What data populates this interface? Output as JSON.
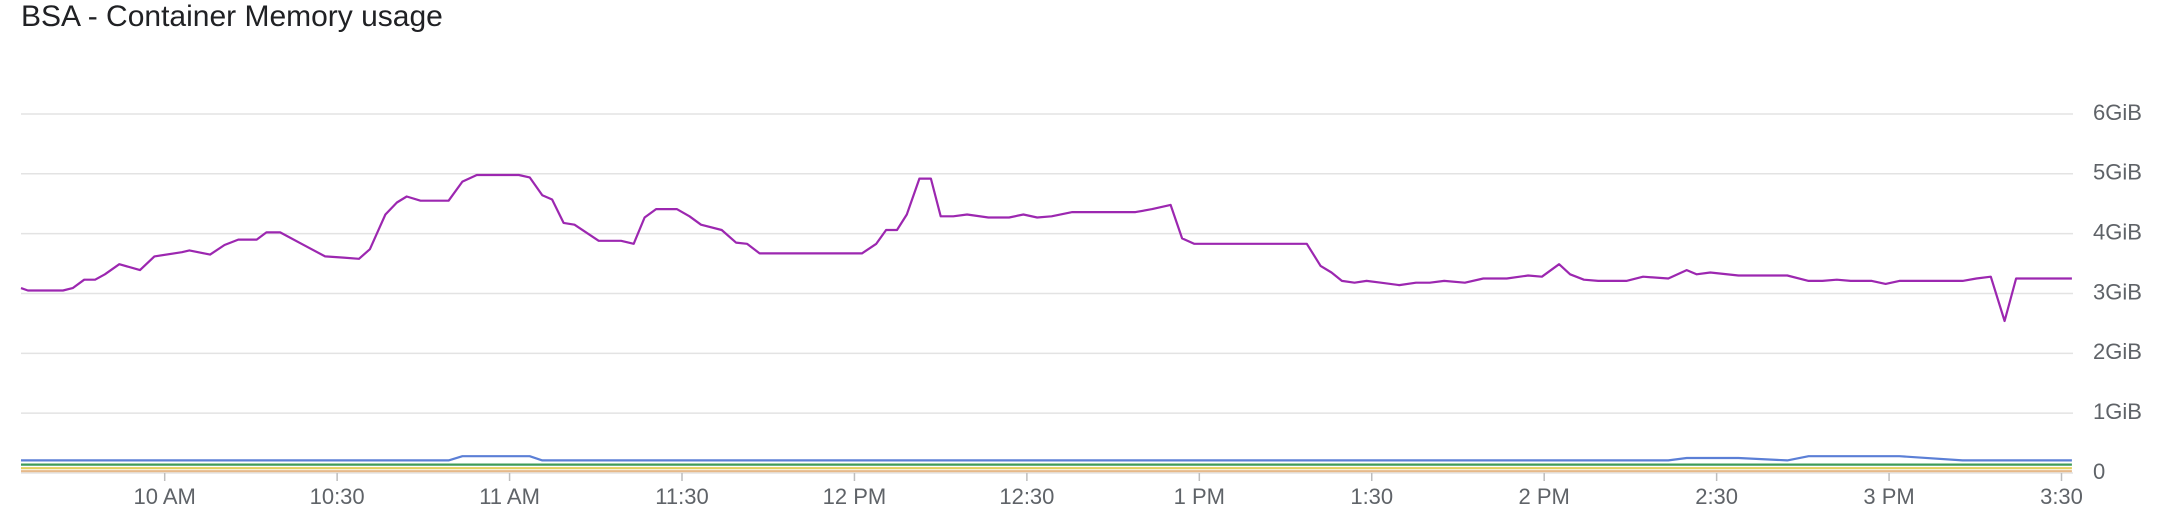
{
  "chart_data": {
    "type": "line",
    "title": "BSA - Container Memory usage",
    "x": [
      575.0,
      576.2,
      582.3,
      584.0,
      586.0,
      587.9,
      589.6,
      592.1,
      595.7,
      598.2,
      603.0,
      604.3,
      607.9,
      610.4,
      612.8,
      616.0,
      617.7,
      620.1,
      623.8,
      627.9,
      631.1,
      633.8,
      635.7,
      638.4,
      640.4,
      642.1,
      644.5,
      649.4,
      651.8,
      654.3,
      661.6,
      663.5,
      665.7,
      667.4,
      669.4,
      671.3,
      675.5,
      679.4,
      681.6,
      683.5,
      685.5,
      689.1,
      691.3,
      693.3,
      696.9,
      699.4,
      701.3,
      703.5,
      721.3,
      723.8,
      725.5,
      727.4,
      729.1,
      731.3,
      733.3,
      735.0,
      737.2,
      739.6,
      743.3,
      746.9,
      749.4,
      751.8,
      754.3,
      757.9,
      768.9,
      771.8,
      775.0,
      777.0,
      779.1,
      798.7,
      801.1,
      803.0,
      804.8,
      807.0,
      809.1,
      811.6,
      814.8,
      817.7,
      820.1,
      822.6,
      826.2,
      829.4,
      833.5,
      837.2,
      839.6,
      842.6,
      844.5,
      846.9,
      849.4,
      854.3,
      857.2,
      861.6,
      864.8,
      866.5,
      868.9,
      873.8,
      882.3,
      886.0,
      888.4,
      890.9,
      893.3,
      897.0,
      899.4,
      901.8,
      912.8,
      915.2,
      917.7,
      920.1,
      922.1,
      931.8
    ],
    "xlim": [
      575,
      932
    ],
    "xticks": [
      {
        "value": 600,
        "label": "10 AM"
      },
      {
        "value": 630,
        "label": "10:30"
      },
      {
        "value": 660,
        "label": "11 AM"
      },
      {
        "value": 690,
        "label": "11:30"
      },
      {
        "value": 720,
        "label": "12 PM"
      },
      {
        "value": 750,
        "label": "12:30"
      },
      {
        "value": 780,
        "label": "1 PM"
      },
      {
        "value": 810,
        "label": "1:30"
      },
      {
        "value": 840,
        "label": "2 PM"
      },
      {
        "value": 870,
        "label": "2:30"
      },
      {
        "value": 900,
        "label": "3 PM"
      },
      {
        "value": 930,
        "label": "3:30"
      }
    ],
    "ylim": [
      0,
      6.3
    ],
    "yticks": [
      0,
      {
        "value": 1,
        "label": "1GiB"
      },
      {
        "value": 2,
        "label": "2GiB"
      },
      {
        "value": 3,
        "label": "3GiB"
      },
      {
        "value": 4,
        "label": "4GiB"
      },
      {
        "value": 5,
        "label": "5GiB"
      },
      {
        "value": 6,
        "label": "6GiB"
      }
    ],
    "grid": true,
    "series": [
      {
        "color": "#e6b98a",
        "values": [
          0.03,
          0.03,
          0.03,
          0.03,
          0.03,
          0.03,
          0.03,
          0.03,
          0.03,
          0.03,
          0.03,
          0.03,
          0.03,
          0.03,
          0.03,
          0.03,
          0.03,
          0.03,
          0.03,
          0.03,
          0.03,
          0.03,
          0.03,
          0.03,
          0.03,
          0.03,
          0.03,
          0.03,
          0.03,
          0.03,
          0.03,
          0.03,
          0.03,
          0.03,
          0.03,
          0.03,
          0.03,
          0.03,
          0.03,
          0.03,
          0.03,
          0.03,
          0.03,
          0.03,
          0.03,
          0.03,
          0.03,
          0.03,
          0.03,
          0.03,
          0.03,
          0.03,
          0.03,
          0.03,
          0.03,
          0.03,
          0.03,
          0.03,
          0.03,
          0.03,
          0.03,
          0.03,
          0.03,
          0.03,
          0.03,
          0.03,
          0.03,
          0.03,
          0.03,
          0.03,
          0.03,
          0.03,
          0.03,
          0.03,
          0.03,
          0.03,
          0.03,
          0.03,
          0.03,
          0.03,
          0.03,
          0.03,
          0.03,
          0.03,
          0.03,
          0.03,
          0.03,
          0.03,
          0.03,
          0.03,
          0.03,
          0.03,
          0.03,
          0.03,
          0.03,
          0.03,
          0.03,
          0.03,
          0.03,
          0.03,
          0.03,
          0.03,
          0.03,
          0.03,
          0.03,
          0.03,
          0.03,
          0.03,
          0.03,
          0.03
        ]
      },
      {
        "color": "#e3cf5c",
        "values": [
          0.08,
          0.08,
          0.08,
          0.08,
          0.08,
          0.08,
          0.08,
          0.08,
          0.08,
          0.08,
          0.08,
          0.08,
          0.08,
          0.08,
          0.08,
          0.08,
          0.08,
          0.08,
          0.08,
          0.08,
          0.08,
          0.08,
          0.08,
          0.08,
          0.08,
          0.08,
          0.08,
          0.08,
          0.08,
          0.08,
          0.08,
          0.08,
          0.08,
          0.08,
          0.08,
          0.08,
          0.08,
          0.08,
          0.08,
          0.08,
          0.08,
          0.08,
          0.08,
          0.08,
          0.08,
          0.08,
          0.08,
          0.08,
          0.08,
          0.08,
          0.08,
          0.08,
          0.08,
          0.08,
          0.08,
          0.08,
          0.08,
          0.08,
          0.08,
          0.08,
          0.08,
          0.08,
          0.08,
          0.08,
          0.08,
          0.08,
          0.08,
          0.08,
          0.08,
          0.08,
          0.08,
          0.08,
          0.08,
          0.08,
          0.08,
          0.08,
          0.08,
          0.08,
          0.08,
          0.08,
          0.08,
          0.08,
          0.08,
          0.08,
          0.08,
          0.08,
          0.08,
          0.08,
          0.08,
          0.08,
          0.08,
          0.08,
          0.08,
          0.08,
          0.08,
          0.08,
          0.08,
          0.08,
          0.08,
          0.08,
          0.08,
          0.08,
          0.08,
          0.08,
          0.08,
          0.08,
          0.08,
          0.08,
          0.08,
          0.08
        ]
      },
      {
        "color": "#3f9b59",
        "values": [
          0.14,
          0.14,
          0.14,
          0.14,
          0.14,
          0.14,
          0.14,
          0.14,
          0.14,
          0.14,
          0.14,
          0.14,
          0.14,
          0.14,
          0.14,
          0.14,
          0.14,
          0.14,
          0.14,
          0.14,
          0.14,
          0.14,
          0.14,
          0.14,
          0.14,
          0.14,
          0.14,
          0.14,
          0.14,
          0.14,
          0.14,
          0.14,
          0.14,
          0.14,
          0.14,
          0.14,
          0.14,
          0.14,
          0.14,
          0.14,
          0.14,
          0.14,
          0.14,
          0.14,
          0.14,
          0.14,
          0.14,
          0.14,
          0.14,
          0.14,
          0.14,
          0.14,
          0.14,
          0.14,
          0.14,
          0.14,
          0.14,
          0.14,
          0.14,
          0.14,
          0.14,
          0.14,
          0.14,
          0.14,
          0.14,
          0.14,
          0.14,
          0.14,
          0.14,
          0.14,
          0.14,
          0.14,
          0.14,
          0.14,
          0.14,
          0.14,
          0.14,
          0.14,
          0.14,
          0.14,
          0.14,
          0.14,
          0.14,
          0.14,
          0.14,
          0.14,
          0.14,
          0.14,
          0.14,
          0.14,
          0.14,
          0.14,
          0.14,
          0.14,
          0.14,
          0.14,
          0.14,
          0.14,
          0.14,
          0.14,
          0.14,
          0.14,
          0.14,
          0.14,
          0.14,
          0.14,
          0.14,
          0.14,
          0.14,
          0.14
        ]
      },
      {
        "color": "#5b7fd6",
        "values": [
          0.21,
          0.21,
          0.21,
          0.21,
          0.21,
          0.21,
          0.21,
          0.21,
          0.21,
          0.21,
          0.21,
          0.21,
          0.21,
          0.21,
          0.21,
          0.21,
          0.21,
          0.21,
          0.21,
          0.21,
          0.21,
          0.21,
          0.21,
          0.21,
          0.21,
          0.21,
          0.21,
          0.21,
          0.28,
          0.28,
          0.28,
          0.28,
          0.21,
          0.21,
          0.21,
          0.21,
          0.21,
          0.21,
          0.21,
          0.21,
          0.21,
          0.21,
          0.21,
          0.21,
          0.21,
          0.21,
          0.21,
          0.21,
          0.21,
          0.21,
          0.21,
          0.21,
          0.21,
          0.21,
          0.21,
          0.21,
          0.21,
          0.21,
          0.21,
          0.21,
          0.21,
          0.21,
          0.21,
          0.21,
          0.21,
          0.21,
          0.21,
          0.21,
          0.21,
          0.21,
          0.21,
          0.21,
          0.21,
          0.21,
          0.21,
          0.21,
          0.21,
          0.21,
          0.21,
          0.21,
          0.21,
          0.21,
          0.21,
          0.21,
          0.21,
          0.21,
          0.21,
          0.21,
          0.21,
          0.21,
          0.21,
          0.21,
          0.25,
          0.25,
          0.25,
          0.25,
          0.21,
          0.28,
          0.28,
          0.28,
          0.28,
          0.28,
          0.28,
          0.28,
          0.21,
          0.21,
          0.21,
          0.21,
          0.21,
          0.21
        ]
      },
      {
        "color": "#9c27b0",
        "values": [
          3.09,
          3.05,
          3.05,
          3.09,
          3.23,
          3.23,
          3.32,
          3.49,
          3.39,
          3.62,
          3.69,
          3.72,
          3.65,
          3.81,
          3.9,
          3.9,
          4.02,
          4.02,
          3.83,
          3.62,
          3.6,
          3.58,
          3.74,
          4.32,
          4.52,
          4.62,
          4.55,
          4.55,
          4.87,
          4.98,
          4.98,
          4.94,
          4.64,
          4.57,
          4.18,
          4.15,
          3.88,
          3.88,
          3.83,
          4.27,
          4.41,
          4.41,
          4.29,
          4.15,
          4.06,
          3.85,
          3.83,
          3.67,
          3.67,
          3.83,
          4.06,
          4.06,
          4.32,
          4.92,
          4.92,
          4.29,
          4.29,
          4.32,
          4.27,
          4.27,
          4.32,
          4.27,
          4.29,
          4.36,
          4.36,
          4.41,
          4.48,
          3.92,
          3.83,
          3.83,
          3.46,
          3.35,
          3.21,
          3.18,
          3.21,
          3.18,
          3.14,
          3.18,
          3.18,
          3.21,
          3.18,
          3.25,
          3.25,
          3.3,
          3.28,
          3.49,
          3.32,
          3.23,
          3.21,
          3.21,
          3.28,
          3.25,
          3.39,
          3.32,
          3.35,
          3.3,
          3.3,
          3.21,
          3.21,
          3.23,
          3.21,
          3.21,
          3.16,
          3.21,
          3.21,
          3.25,
          3.28,
          2.54,
          3.25,
          3.25
        ]
      }
    ]
  }
}
